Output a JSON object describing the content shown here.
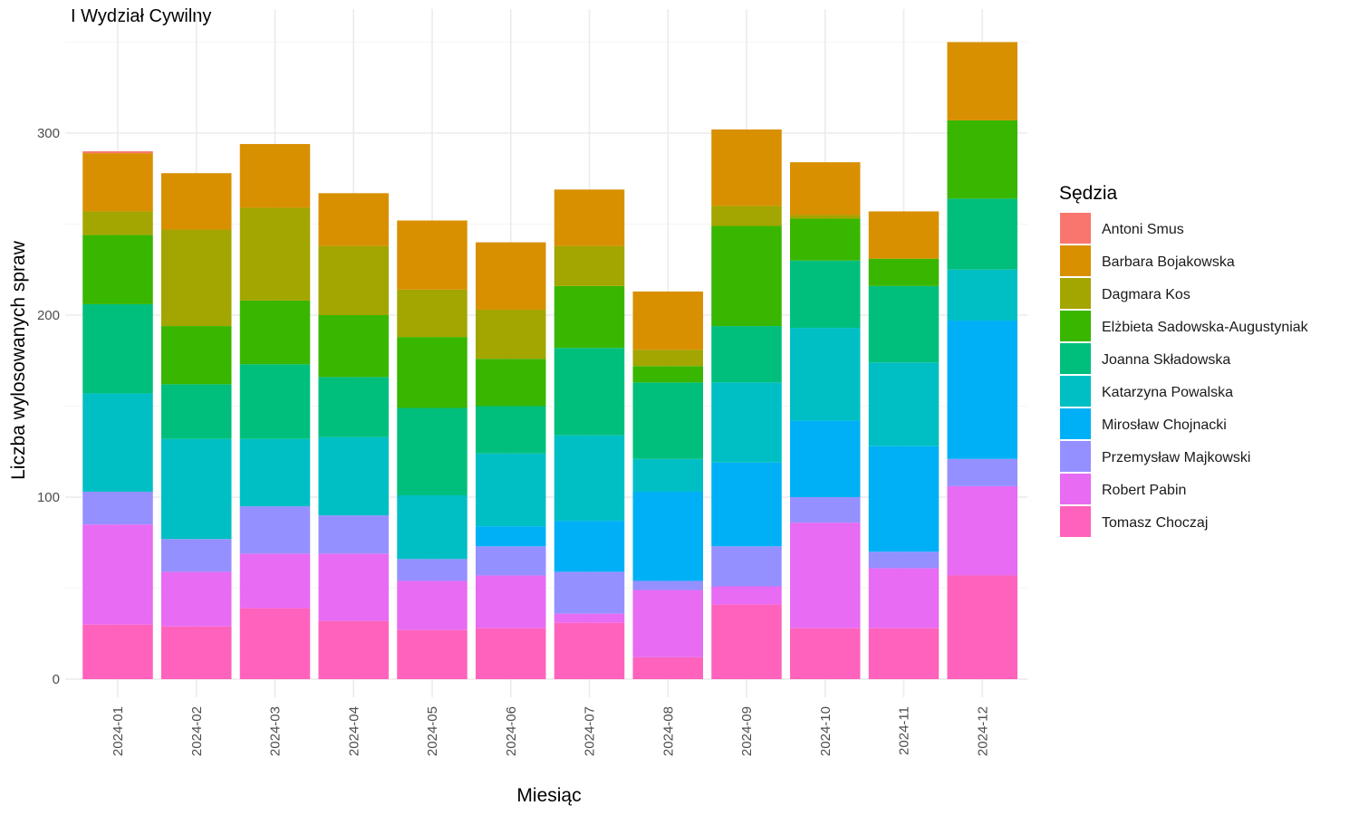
{
  "chart_data": {
    "type": "bar",
    "stacked": true,
    "title": "I Wydział Cywilny",
    "xlabel": "Miesiąc",
    "ylabel": "Liczba wylosowanych spraw",
    "ylim": [
      0,
      360
    ],
    "yticks": [
      0,
      100,
      200,
      300
    ],
    "grid": true,
    "legend_title": "Sędzia",
    "legend_position": "right",
    "categories": [
      "2024-01",
      "2024-02",
      "2024-03",
      "2024-04",
      "2024-05",
      "2024-06",
      "2024-07",
      "2024-08",
      "2024-09",
      "2024-10",
      "2024-11",
      "2024-12"
    ],
    "series": [
      {
        "name": "Antoni Smus",
        "color": "#F8766D",
        "values": [
          1,
          0,
          0,
          0,
          0,
          0,
          0,
          0,
          0,
          0,
          0,
          0
        ]
      },
      {
        "name": "Barbara Bojakowska",
        "color": "#D89000",
        "values": [
          32,
          31,
          35,
          29,
          38,
          37,
          31,
          32,
          42,
          29,
          26,
          43
        ]
      },
      {
        "name": "Dagmara Kos",
        "color": "#A3A500",
        "values": [
          13,
          53,
          51,
          38,
          26,
          27,
          22,
          9,
          11,
          2,
          0,
          0
        ]
      },
      {
        "name": "Elżbieta Sadowska-Augustyniak",
        "color": "#39B600",
        "values": [
          38,
          32,
          35,
          34,
          39,
          26,
          34,
          9,
          55,
          23,
          15,
          43
        ]
      },
      {
        "name": "Joanna Składowska",
        "color": "#00BF7D",
        "values": [
          49,
          30,
          41,
          33,
          48,
          26,
          48,
          42,
          31,
          37,
          42,
          39
        ]
      },
      {
        "name": "Katarzyna Powalska",
        "color": "#00BFC4",
        "values": [
          54,
          55,
          37,
          43,
          35,
          40,
          47,
          18,
          44,
          51,
          46,
          28
        ]
      },
      {
        "name": "Mirosław Chojnacki",
        "color": "#00B0F6",
        "values": [
          0,
          0,
          0,
          0,
          0,
          11,
          28,
          49,
          46,
          42,
          58,
          76
        ]
      },
      {
        "name": "Przemysław Majkowski",
        "color": "#9590FF",
        "values": [
          18,
          18,
          26,
          21,
          12,
          16,
          23,
          5,
          22,
          14,
          9,
          15
        ]
      },
      {
        "name": "Robert Pabin",
        "color": "#E76BF3",
        "values": [
          55,
          30,
          30,
          37,
          27,
          29,
          5,
          37,
          10,
          58,
          33,
          49
        ]
      },
      {
        "name": "Tomasz Choczaj",
        "color": "#FF62BC",
        "values": [
          30,
          29,
          39,
          32,
          27,
          28,
          31,
          12,
          41,
          28,
          28,
          57
        ]
      }
    ]
  }
}
